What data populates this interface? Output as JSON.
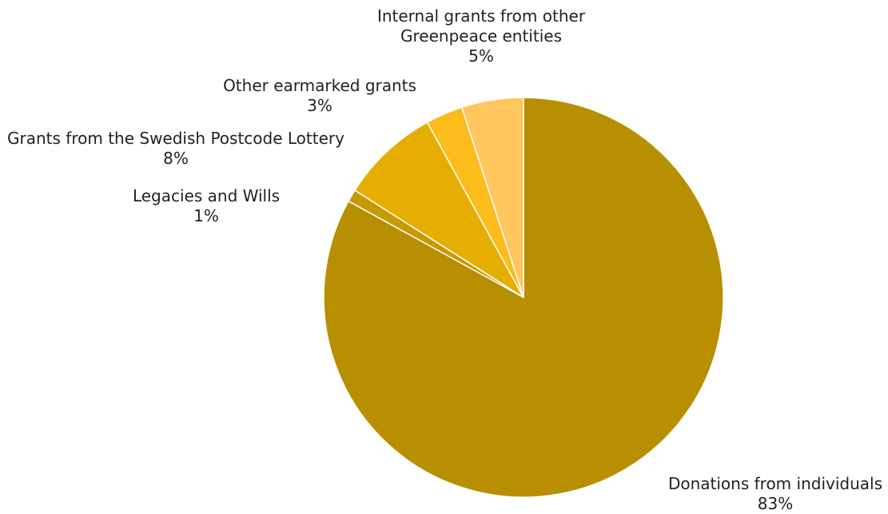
{
  "chart_data": {
    "type": "pie",
    "start_angle": "12 o'clock",
    "direction": "clockwise",
    "slices": [
      {
        "label": "Donations from individuals",
        "value": 83,
        "value_label": "83%",
        "color": "#b88f00"
      },
      {
        "label": "Legacies and Wills",
        "value": 1,
        "value_label": "1%",
        "color": "#c69a00"
      },
      {
        "label": "Grants from the Swedish Postcode Lottery",
        "value": 8,
        "value_label": "8%",
        "color": "#e6ae00"
      },
      {
        "label": "Other earmarked grants",
        "value": 3,
        "value_label": "3%",
        "color": "#fbbc1c"
      },
      {
        "label": "Internal grants from other Greenpeace entities",
        "value": 5,
        "value_label": "5%",
        "color": "#fec65c"
      }
    ]
  }
}
